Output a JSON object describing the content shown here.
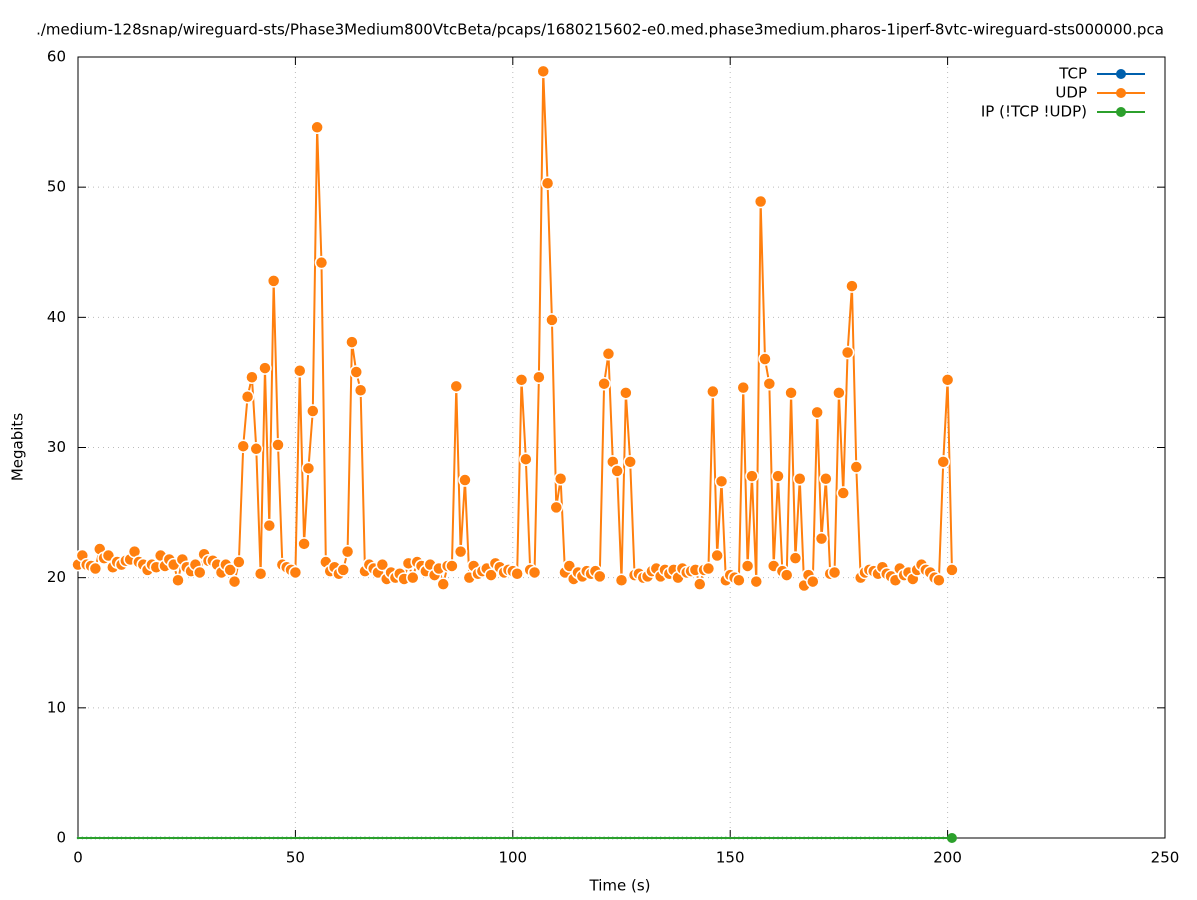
{
  "chart_data": {
    "type": "line",
    "title": "./medium-128snap/wireguard-sts/Phase3Medium800VtcBeta/pcaps/1680215602-e0.med.phase3medium.pharos-1iperf-8vtc-wireguard-sts000000.pca",
    "xlabel": "Time (s)",
    "ylabel": "Megabits",
    "xlim": [
      0,
      250
    ],
    "xticks": [
      0,
      50,
      100,
      150,
      200,
      250
    ],
    "ylim": [
      0,
      60
    ],
    "yticks": [
      0,
      10,
      20,
      30,
      40,
      50,
      60
    ],
    "grid": true,
    "legend": "top-right",
    "x": [
      0,
      1,
      2,
      3,
      4,
      5,
      6,
      7,
      8,
      9,
      10,
      11,
      12,
      13,
      14,
      15,
      16,
      17,
      18,
      19,
      20,
      21,
      22,
      23,
      24,
      25,
      26,
      27,
      28,
      29,
      30,
      31,
      32,
      33,
      34,
      35,
      36,
      37,
      38,
      39,
      40,
      41,
      42,
      43,
      44,
      45,
      46,
      47,
      48,
      49,
      50,
      51,
      52,
      53,
      54,
      55,
      56,
      57,
      58,
      59,
      60,
      61,
      62,
      63,
      64,
      65,
      66,
      67,
      68,
      69,
      70,
      71,
      72,
      73,
      74,
      75,
      76,
      77,
      78,
      79,
      80,
      81,
      82,
      83,
      84,
      85,
      86,
      87,
      88,
      89,
      90,
      91,
      92,
      93,
      94,
      95,
      96,
      97,
      98,
      99,
      100,
      101,
      102,
      103,
      104,
      105,
      106,
      107,
      108,
      109,
      110,
      111,
      112,
      113,
      114,
      115,
      116,
      117,
      118,
      119,
      120,
      121,
      122,
      123,
      124,
      125,
      126,
      127,
      128,
      129,
      130,
      131,
      132,
      133,
      134,
      135,
      136,
      137,
      138,
      139,
      140,
      141,
      142,
      143,
      144,
      145,
      146,
      147,
      148,
      149,
      150,
      151,
      152,
      153,
      154,
      155,
      156,
      157,
      158,
      159,
      160,
      161,
      162,
      163,
      164,
      165,
      166,
      167,
      168,
      169,
      170,
      171,
      172,
      173,
      174,
      175,
      176,
      177,
      178,
      179,
      180,
      181,
      182,
      183,
      184,
      185,
      186,
      187,
      188,
      189,
      190,
      191,
      192,
      193,
      194,
      195,
      196,
      197,
      198,
      199,
      200,
      201
    ],
    "series": [
      {
        "name": "TCP",
        "color": "#0060ad",
        "values": [
          0,
          0,
          0,
          0,
          0,
          0,
          0,
          0,
          0,
          0,
          0,
          0,
          0,
          0,
          0,
          0,
          0,
          0,
          0,
          0,
          0,
          0,
          0,
          0,
          0,
          0,
          0,
          0,
          0,
          0,
          0,
          0,
          0,
          0,
          0,
          0,
          0,
          0,
          0,
          0,
          0,
          0,
          0,
          0,
          0,
          0,
          0,
          0,
          0,
          0,
          0,
          0,
          0,
          0,
          0,
          0,
          0,
          0,
          0,
          0,
          0,
          0,
          0,
          0,
          0,
          0,
          0,
          0,
          0,
          0,
          0,
          0,
          0,
          0,
          0,
          0,
          0,
          0,
          0,
          0,
          0,
          0,
          0,
          0,
          0,
          0,
          0,
          0,
          0,
          0,
          0,
          0,
          0,
          0,
          0,
          0,
          0,
          0,
          0,
          0,
          0,
          0,
          0,
          0,
          0,
          0,
          0,
          0,
          0,
          0,
          0,
          0,
          0,
          0,
          0,
          0,
          0,
          0,
          0,
          0,
          0,
          0,
          0,
          0,
          0,
          0,
          0,
          0,
          0,
          0,
          0,
          0,
          0,
          0,
          0,
          0,
          0,
          0,
          0,
          0,
          0,
          0,
          0,
          0,
          0,
          0,
          0,
          0,
          0,
          0,
          0,
          0,
          0,
          0,
          0,
          0,
          0,
          0,
          0,
          0,
          0,
          0,
          0,
          0,
          0,
          0,
          0,
          0,
          0,
          0,
          0,
          0,
          0,
          0,
          0,
          0,
          0,
          0,
          0,
          0,
          0,
          0,
          0,
          0,
          0,
          0,
          0,
          0,
          0,
          0,
          0,
          0,
          0,
          0,
          0,
          0,
          0,
          0,
          0,
          0,
          0,
          0
        ]
      },
      {
        "name": "UDP",
        "color": "#ff7f0e",
        "values": [
          21.0,
          21.7,
          21.0,
          20.9,
          20.7,
          22.2,
          21.5,
          21.7,
          20.8,
          21.2,
          21.0,
          21.3,
          21.4,
          22.0,
          21.2,
          21.0,
          20.6,
          21.0,
          20.8,
          21.7,
          20.9,
          21.4,
          21.0,
          19.8,
          21.4,
          20.8,
          20.5,
          21.0,
          20.4,
          21.8,
          21.3,
          21.3,
          21.0,
          20.4,
          21.0,
          20.6,
          19.7,
          21.2,
          30.1,
          33.9,
          35.4,
          29.9,
          20.3,
          36.1,
          24.0,
          42.8,
          30.2,
          21.0,
          20.8,
          20.6,
          20.4,
          35.9,
          22.6,
          28.4,
          32.8,
          54.6,
          44.2,
          21.2,
          20.5,
          20.8,
          20.3,
          20.6,
          22.0,
          38.1,
          35.8,
          34.4,
          20.5,
          21.0,
          20.7,
          20.4,
          21.0,
          19.9,
          20.4,
          20.0,
          20.3,
          19.9,
          21.1,
          20.0,
          21.2,
          20.9,
          20.5,
          21.0,
          20.2,
          20.7,
          19.5,
          20.9,
          20.9,
          34.7,
          22.0,
          27.5,
          20.0,
          20.9,
          20.3,
          20.5,
          20.7,
          20.2,
          21.1,
          20.8,
          20.4,
          20.6,
          20.5,
          20.3,
          35.2,
          29.1,
          20.6,
          20.4,
          35.4,
          58.9,
          50.3,
          39.8,
          25.4,
          27.6,
          20.4,
          20.9,
          19.9,
          20.4,
          20.1,
          20.5,
          20.3,
          20.5,
          20.1,
          34.9,
          37.2,
          28.9,
          28.2,
          19.8,
          34.2,
          28.9,
          20.2,
          20.3,
          20.0,
          20.1,
          20.5,
          20.7,
          20.1,
          20.6,
          20.3,
          20.6,
          20.0,
          20.7,
          20.4,
          20.5,
          20.6,
          19.5,
          20.6,
          20.7,
          34.3,
          21.7,
          27.4,
          19.8,
          20.2,
          20.0,
          19.8,
          34.6,
          20.9,
          27.8,
          19.7,
          48.9,
          36.8,
          34.9,
          20.9,
          27.8,
          20.5,
          20.2,
          34.2,
          21.5,
          27.6,
          19.4,
          20.2,
          19.7,
          32.7,
          23.0,
          27.6,
          20.3,
          20.4,
          34.2,
          26.5,
          37.3,
          42.4,
          28.5,
          20.0,
          20.4,
          20.6,
          20.5,
          20.3,
          20.8,
          20.3,
          20.1,
          19.8,
          20.7,
          20.2,
          20.4,
          19.9,
          20.6,
          21.0,
          20.6,
          20.4,
          20.0,
          19.8,
          28.9,
          35.2,
          20.6
        ]
      },
      {
        "name": "IP (!TCP  !UDP)",
        "color": "#2ca02c",
        "values": [
          0,
          0,
          0,
          0,
          0,
          0,
          0,
          0,
          0,
          0,
          0,
          0,
          0,
          0,
          0,
          0,
          0,
          0,
          0,
          0,
          0,
          0,
          0,
          0,
          0,
          0,
          0,
          0,
          0,
          0,
          0,
          0,
          0,
          0,
          0,
          0,
          0,
          0,
          0,
          0,
          0,
          0,
          0,
          0,
          0,
          0,
          0,
          0,
          0,
          0,
          0,
          0,
          0,
          0,
          0,
          0,
          0,
          0,
          0,
          0,
          0,
          0,
          0,
          0,
          0,
          0,
          0,
          0,
          0,
          0,
          0,
          0,
          0,
          0,
          0,
          0,
          0,
          0,
          0,
          0,
          0,
          0,
          0,
          0,
          0,
          0,
          0,
          0,
          0,
          0,
          0,
          0,
          0,
          0,
          0,
          0,
          0,
          0,
          0,
          0,
          0,
          0,
          0,
          0,
          0,
          0,
          0,
          0,
          0,
          0,
          0,
          0,
          0,
          0,
          0,
          0,
          0,
          0,
          0,
          0,
          0,
          0,
          0,
          0,
          0,
          0,
          0,
          0,
          0,
          0,
          0,
          0,
          0,
          0,
          0,
          0,
          0,
          0,
          0,
          0,
          0,
          0,
          0,
          0,
          0,
          0,
          0,
          0,
          0,
          0,
          0,
          0,
          0,
          0,
          0,
          0,
          0,
          0,
          0,
          0,
          0,
          0,
          0,
          0,
          0,
          0,
          0,
          0,
          0,
          0,
          0,
          0,
          0,
          0,
          0,
          0,
          0,
          0,
          0,
          0,
          0,
          0,
          0,
          0,
          0,
          0,
          0,
          0,
          0,
          0,
          0,
          0,
          0,
          0,
          0,
          0,
          0,
          0,
          0,
          0,
          0,
          0
        ]
      }
    ]
  }
}
